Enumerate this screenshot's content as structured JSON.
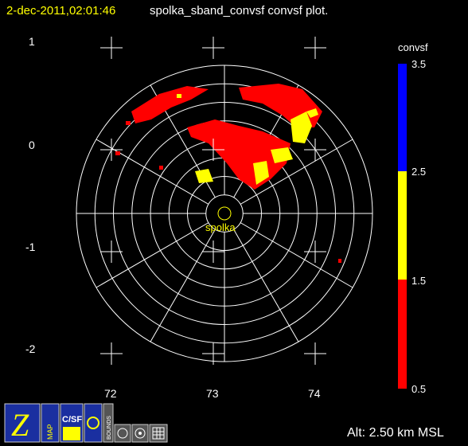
{
  "header": {
    "timestamp": "2-dec-2011,02:01:46",
    "title": "spolka_sband_convsf convsf  plot."
  },
  "y_axis": {
    "labels": [
      "1",
      "0",
      "-1",
      "-2"
    ]
  },
  "x_axis": {
    "labels": [
      "72",
      "73",
      "74"
    ]
  },
  "colorbar": {
    "label": "convsf",
    "labels": [
      "3.5",
      "2.5",
      "1.5",
      "0.5"
    ]
  },
  "site": {
    "label": "spolka"
  },
  "footer": {
    "altitude": "Alt: 2.50 km MSL"
  },
  "toolbar": {
    "labels": [
      "MAP",
      "C/SF",
      "BOUNDS"
    ]
  }
}
